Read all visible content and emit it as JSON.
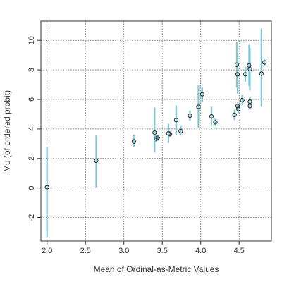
{
  "chart_data": {
    "type": "scatter",
    "title": "",
    "xlabel": "Mean of Ordinal-as-Metric Values",
    "ylabel": "Mu (of ordered probit)",
    "xlim": [
      1.92,
      4.92
    ],
    "ylim": [
      -3.6,
      11.3
    ],
    "x_ticks": [
      "2.0",
      "2.5",
      "3.0",
      "3.5",
      "4.0",
      "4.5"
    ],
    "y_ticks": [
      "-2",
      "0",
      "2",
      "4",
      "6",
      "8",
      "10"
    ],
    "grid": "dotted",
    "point_color": "#222222",
    "errorbar_color": "#7ec8d8",
    "points": [
      {
        "x": 2.0,
        "y": 0.05,
        "lo": -3.3,
        "hi": 2.8
      },
      {
        "x": 2.64,
        "y": 1.85,
        "lo": 0.0,
        "hi": 3.55
      },
      {
        "x": 3.13,
        "y": 3.15,
        "lo": 2.8,
        "hi": 3.6
      },
      {
        "x": 3.4,
        "y": 3.75,
        "lo": 2.4,
        "hi": 5.45
      },
      {
        "x": 3.42,
        "y": 3.35,
        "lo": 3.1,
        "hi": 3.6
      },
      {
        "x": 3.44,
        "y": 3.4,
        "lo": 3.2,
        "hi": 3.6
      },
      {
        "x": 3.58,
        "y": 3.7,
        "lo": 3.05,
        "hi": 4.35
      },
      {
        "x": 3.6,
        "y": 3.65,
        "lo": 3.45,
        "hi": 3.85
      },
      {
        "x": 3.68,
        "y": 4.6,
        "lo": 3.6,
        "hi": 5.6
      },
      {
        "x": 3.74,
        "y": 3.85,
        "lo": 3.55,
        "hi": 4.2
      },
      {
        "x": 3.86,
        "y": 4.9,
        "lo": 4.55,
        "hi": 5.25
      },
      {
        "x": 3.97,
        "y": 5.5,
        "lo": 4.1,
        "hi": 7.0
      },
      {
        "x": 4.02,
        "y": 6.35,
        "lo": 5.8,
        "hi": 6.8
      },
      {
        "x": 4.14,
        "y": 4.85,
        "lo": 4.2,
        "hi": 5.5
      },
      {
        "x": 4.19,
        "y": 4.45,
        "lo": 4.2,
        "hi": 4.7
      },
      {
        "x": 4.44,
        "y": 4.95,
        "lo": 4.6,
        "hi": 5.3
      },
      {
        "x": 4.47,
        "y": 8.35,
        "lo": 6.8,
        "hi": 9.9
      },
      {
        "x": 4.48,
        "y": 7.7,
        "lo": 6.4,
        "hi": 9.1
      },
      {
        "x": 4.48,
        "y": 5.55,
        "lo": 5.3,
        "hi": 5.8
      },
      {
        "x": 4.49,
        "y": 5.35,
        "lo": 5.1,
        "hi": 5.6
      },
      {
        "x": 4.54,
        "y": 5.95,
        "lo": 5.6,
        "hi": 6.3
      },
      {
        "x": 4.58,
        "y": 7.7,
        "lo": 7.2,
        "hi": 8.2
      },
      {
        "x": 4.63,
        "y": 8.3,
        "lo": 6.9,
        "hi": 9.7
      },
      {
        "x": 4.64,
        "y": 8.05,
        "lo": 6.6,
        "hi": 9.5
      },
      {
        "x": 4.64,
        "y": 5.85,
        "lo": 5.55,
        "hi": 6.15
      },
      {
        "x": 4.64,
        "y": 5.55,
        "lo": 5.3,
        "hi": 5.8
      },
      {
        "x": 4.79,
        "y": 7.75,
        "lo": 5.5,
        "hi": 10.8
      },
      {
        "x": 4.83,
        "y": 8.5,
        "lo": 8.25,
        "hi": 8.75
      }
    ]
  }
}
